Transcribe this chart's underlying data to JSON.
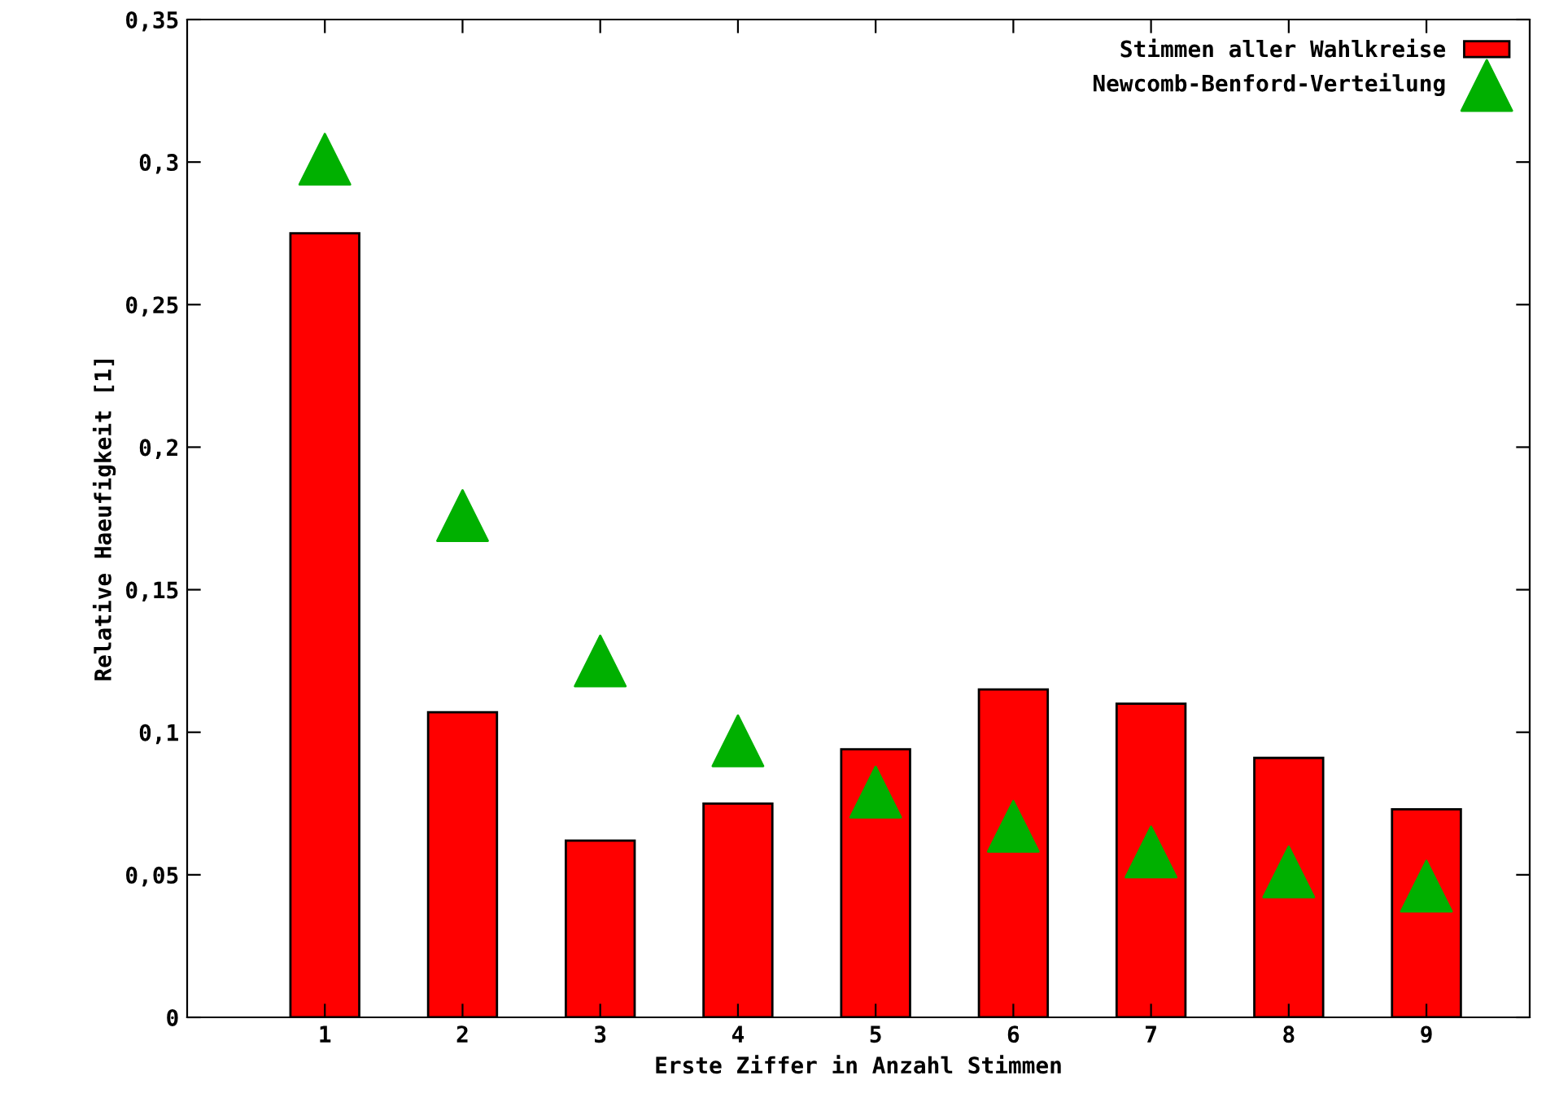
{
  "chart_data": {
    "type": "bar",
    "xlabel": "Erste Ziffer in Anzahl Stimmen",
    "ylabel": "Relative Haeufigkeit [1]",
    "x": [
      1,
      2,
      3,
      4,
      5,
      6,
      7,
      8,
      9
    ],
    "series": [
      {
        "name": "Stimmen aller Wahlkreise",
        "color": "#ff0000",
        "values": [
          0.275,
          0.107,
          0.062,
          0.075,
          0.094,
          0.115,
          0.11,
          0.091,
          0.073
        ]
      },
      {
        "name": "Newcomb-Benford-Verteilung",
        "type": "scatter",
        "marker": "triangle",
        "color": "#00b000",
        "values": [
          0.301,
          0.176,
          0.125,
          0.097,
          0.079,
          0.067,
          0.058,
          0.051,
          0.046
        ]
      }
    ],
    "xlim": [
      0,
      9.75
    ],
    "xticks": [
      1,
      2,
      3,
      4,
      5,
      6,
      7,
      8,
      9
    ],
    "ylim": [
      0,
      0.35
    ],
    "yticks": [
      {
        "value": 0,
        "label": "0"
      },
      {
        "value": 0.05,
        "label": "0,05"
      },
      {
        "value": 0.1,
        "label": "0,1"
      },
      {
        "value": 0.15,
        "label": "0,15"
      },
      {
        "value": 0.2,
        "label": "0,2"
      },
      {
        "value": 0.25,
        "label": "0,25"
      },
      {
        "value": 0.3,
        "label": "0,3"
      },
      {
        "value": 0.35,
        "label": "0,35"
      }
    ],
    "grid": false,
    "legend": "top right"
  }
}
